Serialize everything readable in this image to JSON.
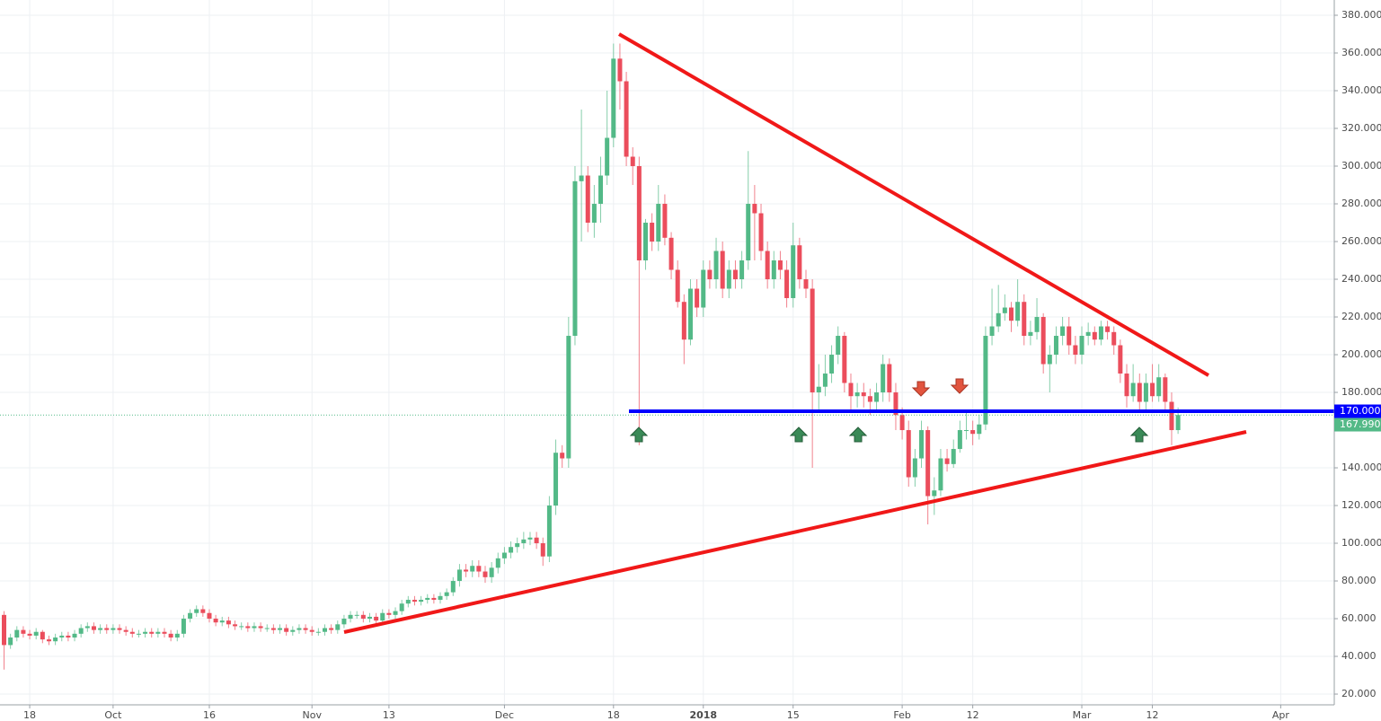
{
  "chart_data": {
    "type": "candlestick",
    "up_color": "#53b987",
    "down_color": "#eb4d5c",
    "grid": true,
    "categories": [
      null,
      null,
      null,
      null,
      "18",
      null,
      null,
      null,
      null,
      null,
      null,
      null,
      null,
      null,
      null,
      null,
      null,
      "Oct",
      null,
      null,
      null,
      null,
      null,
      null,
      null,
      null,
      null,
      null,
      null,
      null,
      null,
      null,
      "16",
      null,
      null,
      null,
      null,
      null,
      null,
      null,
      null,
      null,
      null,
      null,
      null,
      null,
      null,
      null,
      "Nov",
      null,
      null,
      null,
      null,
      null,
      null,
      null,
      null,
      null,
      null,
      null,
      "13",
      null,
      null,
      null,
      null,
      null,
      null,
      null,
      null,
      null,
      null,
      null,
      null,
      null,
      null,
      null,
      null,
      null,
      "Dec",
      null,
      null,
      null,
      null,
      null,
      null,
      null,
      null,
      null,
      null,
      null,
      null,
      null,
      null,
      null,
      null,
      "18",
      null,
      null,
      null,
      null,
      null,
      null,
      null,
      null,
      null,
      null,
      null,
      null,
      null,
      "2018",
      null,
      null,
      null,
      null,
      null,
      null,
      null,
      null,
      null,
      null,
      null,
      null,
      null,
      "15",
      null,
      null,
      null,
      null,
      null,
      null,
      null,
      null,
      null,
      null,
      null,
      null,
      null,
      null,
      null,
      null,
      "Feb",
      null,
      null,
      null,
      null,
      null,
      null,
      null,
      null,
      null,
      null,
      "12",
      null,
      null,
      null,
      null,
      null,
      null,
      null,
      null,
      null,
      null,
      null,
      null,
      null,
      null,
      null,
      null,
      "Mar",
      null,
      null,
      null,
      null,
      null,
      null,
      null,
      null,
      null,
      null,
      "12",
      null,
      null,
      null,
      null,
      null,
      null,
      null,
      null,
      null,
      null,
      null,
      null,
      null,
      null,
      null,
      null,
      null,
      null,
      null,
      "Apr"
    ],
    "open": [
      62,
      46,
      50,
      54,
      52,
      51,
      53,
      49,
      48,
      50,
      51,
      50,
      52,
      55,
      56,
      54,
      55,
      54,
      55,
      54,
      53,
      52,
      52,
      53,
      52,
      53,
      52,
      50,
      52,
      60,
      63,
      65,
      63,
      60,
      58,
      59,
      57,
      56,
      56,
      55,
      56,
      55,
      55,
      54,
      55,
      53,
      54,
      55,
      54,
      53,
      53,
      55,
      54,
      57,
      60,
      62,
      62,
      60,
      61,
      59,
      63,
      62,
      64,
      68,
      70,
      69,
      70,
      71,
      70,
      72,
      74,
      80,
      86,
      85,
      88,
      85,
      82,
      87,
      92,
      95,
      98,
      100,
      102,
      103,
      100,
      93,
      120,
      148,
      145,
      210,
      292,
      295,
      270,
      280,
      295,
      315,
      357,
      345,
      305,
      300,
      250,
      270,
      260,
      280,
      262,
      245,
      228,
      208,
      235,
      225,
      245,
      240,
      255,
      235,
      245,
      240,
      250,
      280,
      275,
      255,
      240,
      250,
      245,
      230,
      258,
      240,
      235,
      180,
      183,
      190,
      200,
      210,
      185,
      178,
      180,
      178,
      175,
      180,
      195,
      180,
      168,
      160,
      135,
      145,
      160,
      125,
      128,
      145,
      142,
      150,
      160,
      160,
      158,
      163,
      210,
      215,
      222,
      225,
      218,
      228,
      210,
      212,
      220,
      195,
      200,
      210,
      215,
      205,
      200,
      210,
      212,
      208,
      215,
      212,
      205,
      190,
      178,
      185,
      175,
      185,
      178,
      188,
      175,
      160,
      null,
      null,
      null,
      null,
      null,
      null,
      null,
      null,
      null,
      null,
      null,
      null,
      null,
      null,
      null,
      null
    ],
    "high": [
      64,
      52,
      56,
      56,
      54,
      55,
      54,
      51,
      52,
      53,
      53,
      54,
      57,
      58,
      58,
      57,
      57,
      57,
      57,
      56,
      55,
      54,
      55,
      55,
      55,
      55,
      54,
      54,
      62,
      65,
      67,
      67,
      65,
      62,
      61,
      61,
      59,
      58,
      58,
      58,
      58,
      57,
      57,
      57,
      57,
      56,
      57,
      57,
      56,
      55,
      57,
      57,
      59,
      62,
      64,
      64,
      64,
      63,
      63,
      65,
      65,
      66,
      70,
      72,
      72,
      72,
      73,
      73,
      74,
      76,
      82,
      89,
      89,
      91,
      91,
      88,
      90,
      95,
      98,
      101,
      103,
      106,
      106,
      106,
      103,
      125,
      155,
      152,
      220,
      300,
      330,
      300,
      290,
      305,
      340,
      365,
      365,
      350,
      310,
      305,
      272,
      275,
      290,
      285,
      265,
      250,
      232,
      240,
      240,
      250,
      250,
      262,
      260,
      250,
      250,
      255,
      308,
      290,
      280,
      260,
      255,
      255,
      250,
      270,
      262,
      245,
      240,
      195,
      200,
      205,
      215,
      212,
      190,
      185,
      185,
      182,
      185,
      200,
      198,
      185,
      172,
      165,
      150,
      165,
      162,
      135,
      150,
      150,
      155,
      165,
      170,
      165,
      168,
      215,
      235,
      237,
      232,
      228,
      240,
      232,
      218,
      230,
      222,
      205,
      215,
      220,
      220,
      210,
      215,
      217,
      215,
      218,
      218,
      215,
      208,
      195,
      195,
      190,
      190,
      195,
      195,
      190,
      180,
      172,
      null,
      null,
      null,
      null,
      null,
      null,
      null,
      null,
      null,
      null,
      null,
      null,
      null,
      null,
      null,
      null
    ],
    "low": [
      33,
      44,
      48,
      50,
      49,
      49,
      47,
      46,
      46,
      48,
      48,
      48,
      50,
      53,
      52,
      52,
      52,
      52,
      52,
      51,
      50,
      50,
      50,
      50,
      50,
      50,
      48,
      48,
      50,
      58,
      61,
      61,
      58,
      56,
      56,
      55,
      54,
      54,
      53,
      53,
      53,
      53,
      52,
      52,
      51,
      51,
      52,
      52,
      51,
      51,
      51,
      52,
      52,
      55,
      58,
      60,
      58,
      58,
      57,
      57,
      60,
      60,
      62,
      66,
      67,
      67,
      68,
      68,
      68,
      70,
      72,
      77,
      82,
      82,
      82,
      79,
      79,
      84,
      89,
      92,
      95,
      97,
      99,
      97,
      88,
      90,
      115,
      140,
      140,
      205,
      260,
      265,
      262,
      270,
      290,
      310,
      330,
      300,
      290,
      152,
      245,
      255,
      255,
      258,
      240,
      225,
      195,
      205,
      220,
      220,
      235,
      235,
      230,
      230,
      235,
      235,
      245,
      250,
      250,
      235,
      235,
      240,
      225,
      225,
      235,
      230,
      140,
      170,
      178,
      185,
      195,
      180,
      170,
      172,
      172,
      168,
      170,
      175,
      175,
      160,
      155,
      130,
      130,
      140,
      110,
      115,
      125,
      138,
      140,
      148,
      155,
      152,
      155,
      160,
      205,
      212,
      218,
      212,
      215,
      205,
      205,
      208,
      190,
      180,
      195,
      205,
      200,
      195,
      195,
      205,
      205,
      205,
      208,
      200,
      185,
      172,
      175,
      170,
      170,
      175,
      175,
      170,
      152,
      158,
      null,
      null,
      null,
      null,
      null,
      null,
      null,
      null,
      null,
      null,
      null,
      null,
      null,
      null,
      null,
      null
    ],
    "close": [
      46,
      50,
      54,
      52,
      51,
      53,
      49,
      48,
      50,
      51,
      50,
      52,
      55,
      56,
      54,
      55,
      54,
      55,
      54,
      53,
      52,
      52,
      53,
      52,
      53,
      52,
      50,
      52,
      60,
      63,
      65,
      63,
      60,
      58,
      59,
      57,
      56,
      56,
      55,
      56,
      55,
      55,
      54,
      55,
      53,
      54,
      55,
      54,
      53,
      53,
      55,
      54,
      57,
      60,
      62,
      62,
      60,
      61,
      59,
      63,
      62,
      64,
      68,
      70,
      69,
      70,
      71,
      70,
      72,
      74,
      80,
      86,
      85,
      88,
      85,
      82,
      87,
      92,
      95,
      98,
      100,
      102,
      103,
      100,
      93,
      120,
      148,
      145,
      210,
      292,
      295,
      270,
      280,
      295,
      315,
      357,
      345,
      305,
      300,
      250,
      270,
      260,
      280,
      262,
      245,
      228,
      208,
      235,
      225,
      245,
      240,
      255,
      235,
      245,
      240,
      250,
      280,
      275,
      255,
      240,
      250,
      245,
      230,
      258,
      240,
      235,
      180,
      183,
      190,
      200,
      210,
      185,
      178,
      180,
      178,
      175,
      180,
      195,
      180,
      168,
      160,
      135,
      145,
      160,
      125,
      128,
      145,
      142,
      150,
      160,
      160,
      158,
      163,
      210,
      215,
      222,
      225,
      218,
      228,
      210,
      212,
      220,
      195,
      200,
      210,
      215,
      205,
      200,
      210,
      212,
      208,
      215,
      212,
      205,
      190,
      178,
      185,
      175,
      185,
      178,
      188,
      175,
      160,
      168,
      null,
      null,
      null,
      null,
      null,
      null,
      null,
      null,
      null,
      null,
      null,
      null,
      null,
      null,
      null,
      null
    ],
    "ylim": [
      14.3,
      388.1
    ],
    "yticks": [
      {
        "value": 20,
        "label": "20.000"
      },
      {
        "value": 40,
        "label": "40.000"
      },
      {
        "value": 60,
        "label": "60.000"
      },
      {
        "value": 80,
        "label": "80.000"
      },
      {
        "value": 100,
        "label": "100.000"
      },
      {
        "value": 120,
        "label": "120.000"
      },
      {
        "value": 140,
        "label": "140.000"
      },
      {
        "value": 180,
        "label": "180.000"
      },
      {
        "value": 200,
        "label": "200.000"
      },
      {
        "value": 220,
        "label": "220.000"
      },
      {
        "value": 240,
        "label": "240.000"
      },
      {
        "value": 260,
        "label": "260.000"
      },
      {
        "value": 280,
        "label": "280.000"
      },
      {
        "value": 300,
        "label": "300.000"
      },
      {
        "value": 320,
        "label": "320.000"
      },
      {
        "value": 340,
        "label": "340.000"
      },
      {
        "value": 360,
        "label": "360.000"
      },
      {
        "value": 380,
        "label": "380.000"
      }
    ],
    "annotations": [
      {
        "value": 170,
        "label": "170.000",
        "color": "#0000ff"
      },
      {
        "value": 167.99,
        "label": "167.990",
        "color": "#53b987"
      }
    ]
  }
}
